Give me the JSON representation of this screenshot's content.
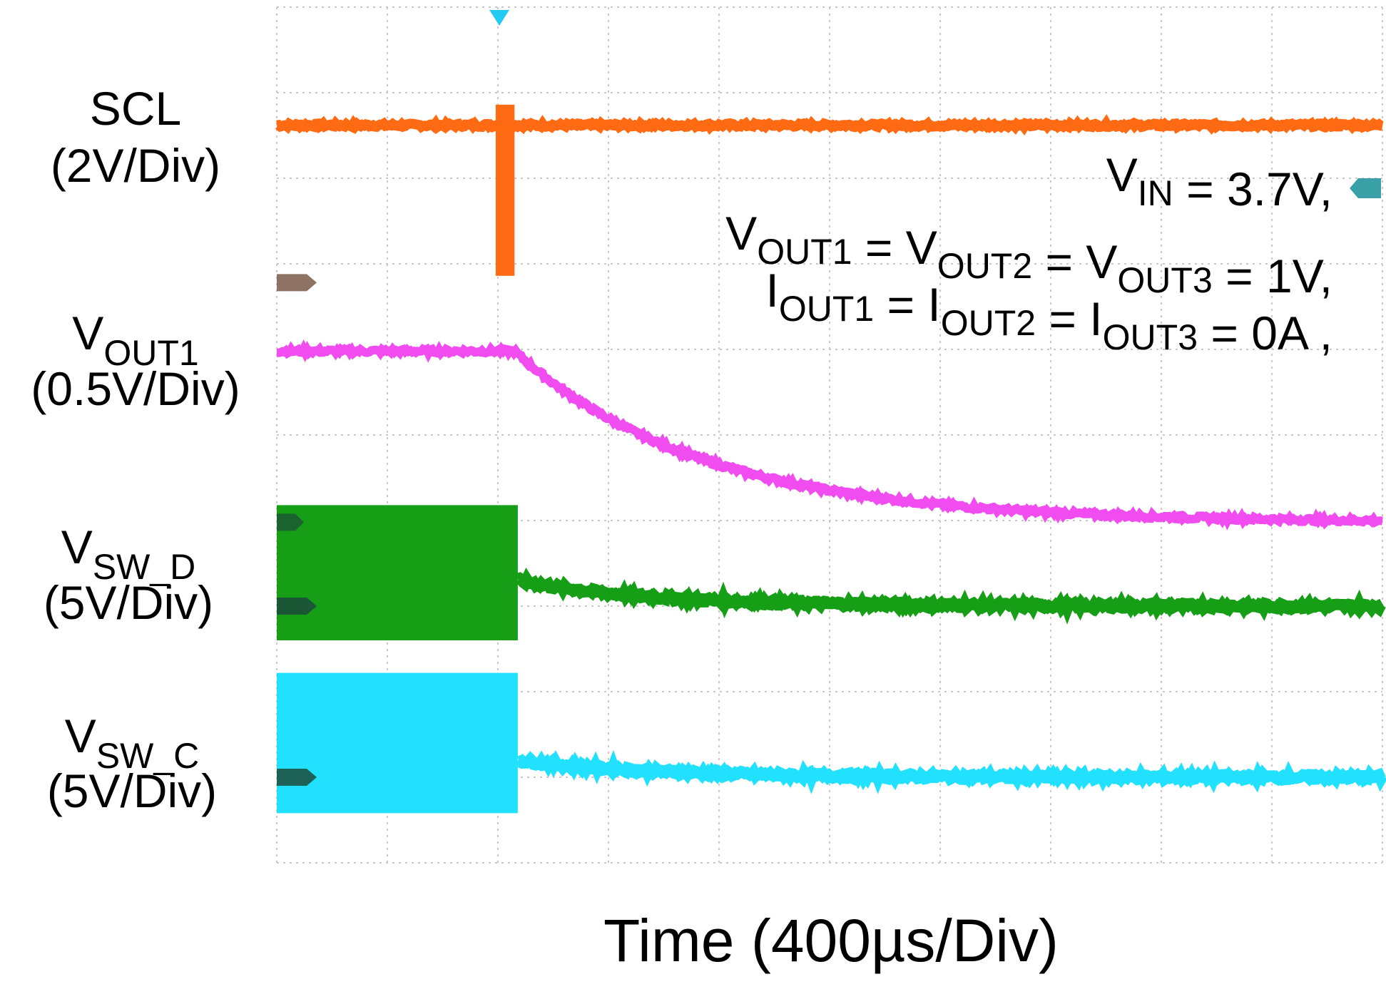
{
  "chart_data": {
    "type": "line",
    "xlabel": "Time (400µs/Div)",
    "grid": true,
    "x_divisions": 10,
    "y_divisions": 10,
    "x_unit": "Div",
    "x_range": [
      0,
      10
    ],
    "trigger_x": 2,
    "series": [
      {
        "name": "SCL",
        "name_main": "SCL",
        "name_sub": "",
        "scale": "(2V/Div)",
        "color": "#ff6a13",
        "kind": "level",
        "level_div": 8.62,
        "noise": 0.04,
        "glitch": {
          "x_start": 1.98,
          "x_end": 2.15,
          "high": 8.86,
          "low": 6.86
        },
        "marker_div": 6.78
      },
      {
        "name": "VOUT1",
        "name_main": "V",
        "name_sub": "OUT1",
        "scale": "(0.5V/Div)",
        "color": "#f04cf0",
        "kind": "decay",
        "initial_div": 5.98,
        "final_div": 3.98,
        "decay_start": 2.15,
        "tau_div": 1.7,
        "noise": 0.05
      },
      {
        "name": "VSW_D",
        "name_main": "V",
        "name_sub": "SW_D",
        "scale": "(5V/Div)",
        "color": "#169e16",
        "kind": "switch",
        "switch_top_div": 4.18,
        "switch_bottom_div": 2.6,
        "switch_end": 2.18,
        "after_start_div": 3.3,
        "settle_div": 3.0,
        "tau_div": 1.2,
        "marker_div": 3.0,
        "marker_top_div": 3.98
      },
      {
        "name": "VSW_C",
        "name_main": "V",
        "name_sub": "SW_C",
        "scale": "(5V/Div)",
        "color": "#22e1ff",
        "kind": "switch",
        "switch_top_div": 2.22,
        "switch_bottom_div": 0.58,
        "switch_end": 2.18,
        "after_start_div": 1.2,
        "settle_div": 1.0,
        "tau_div": 1.2,
        "marker_div": 1.0
      }
    ]
  },
  "annotation": {
    "line1": {
      "v": "V",
      "sub": "IN",
      "rest": " = 3.7V,"
    },
    "line2": [
      {
        "t": "V",
        "s": "OUT1"
      },
      {
        "t": " = V",
        "s": "OUT2"
      },
      {
        "t": " = V",
        "s": "OUT3"
      },
      {
        "t": " = 1V,",
        "s": ""
      }
    ],
    "line3": [
      {
        "t": "I",
        "s": "OUT1"
      },
      {
        "t": " = I",
        "s": "OUT2"
      },
      {
        "t": " = I",
        "s": "OUT3"
      },
      {
        "t": " = 0A ,",
        "s": ""
      }
    ]
  }
}
